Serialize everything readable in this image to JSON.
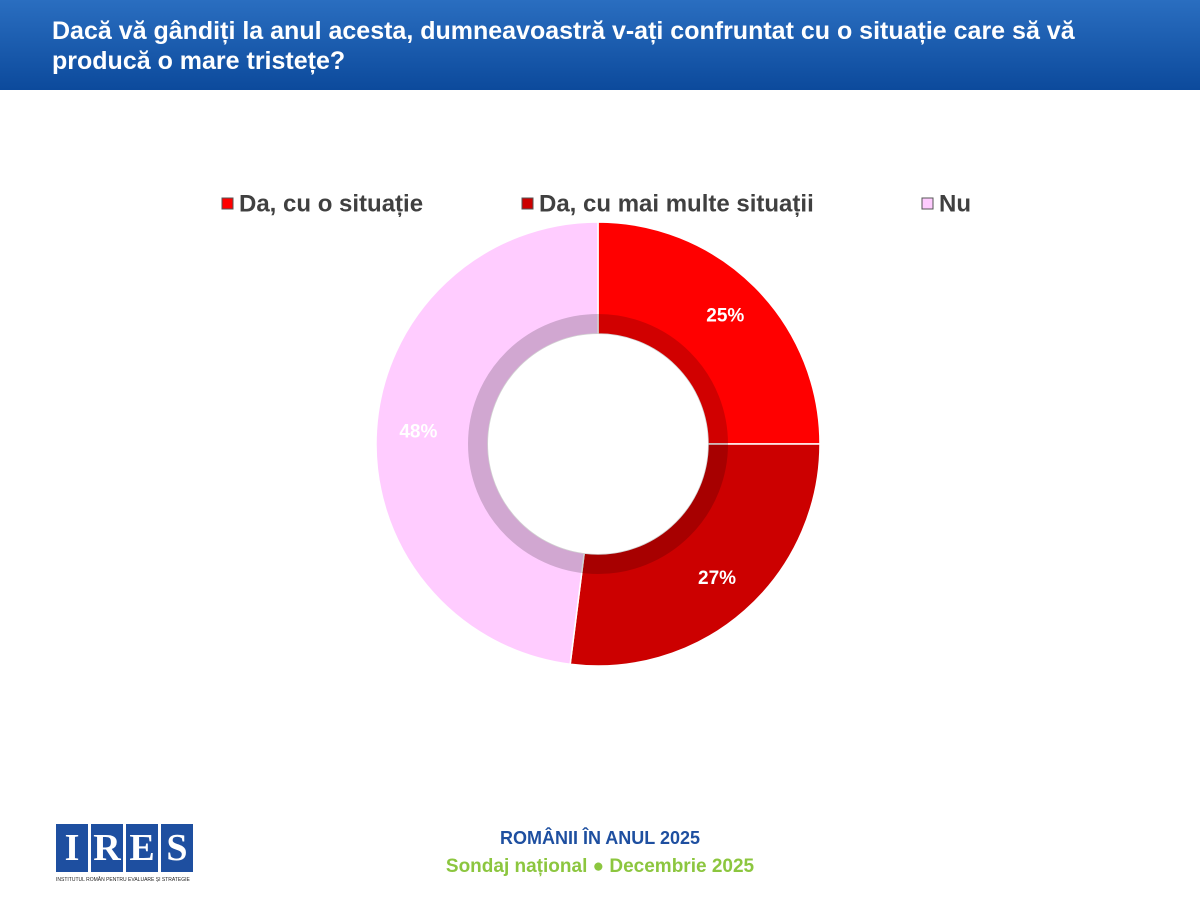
{
  "chart_data": {
    "type": "donut",
    "title": "Dacă vă gândiți la anul acesta, dumneavoastră v-ați confruntat cu o situație care să vă producă o mare tristețe?",
    "categories": [
      "Da, cu o situație",
      "Da, cu mai multe situații",
      "Nu"
    ],
    "values": [
      25,
      27,
      48
    ],
    "value_labels": [
      "25%",
      "27%",
      "48%"
    ],
    "colors": [
      "#ff0000",
      "#cc0000",
      "#ffccff"
    ],
    "label_colors": [
      "#ffffff",
      "#ffffff",
      "#ffffff"
    ],
    "legend": "top"
  },
  "footer": {
    "logo_letters": [
      "I",
      "R",
      "E",
      "S"
    ],
    "logo_caption": "INSTITUTUL ROMÂN PENTRU EVALUARE ȘI STRATEGIE",
    "line1": "ROMÂNII ÎN ANUL 2025",
    "line2": "Sondaj național ● Decembrie 2025"
  }
}
